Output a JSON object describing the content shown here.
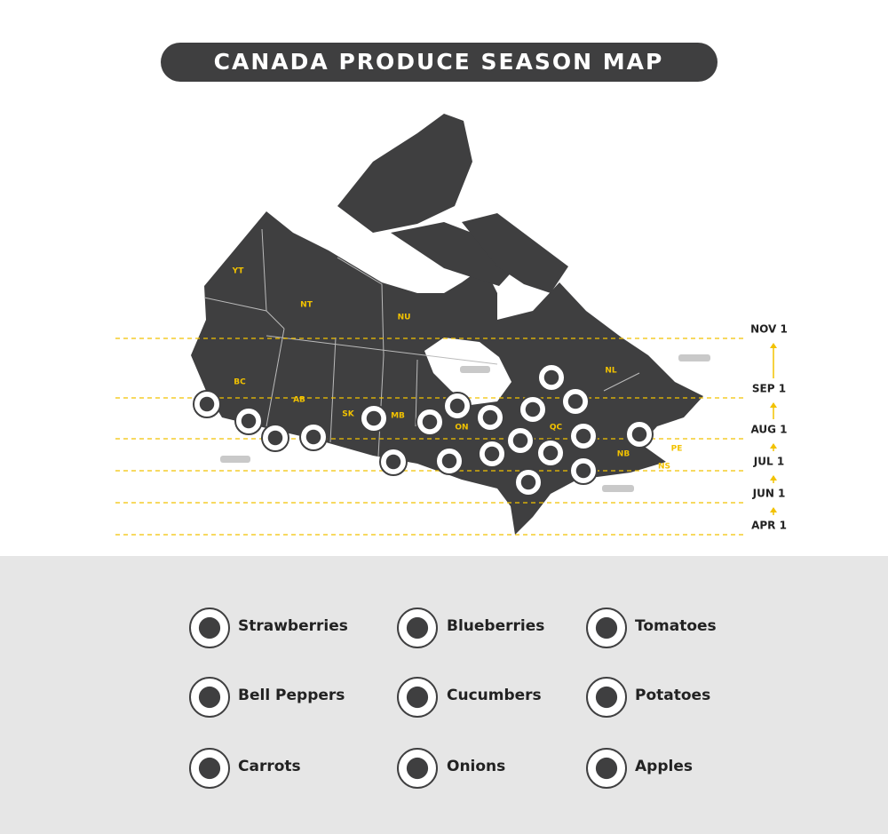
{
  "title": "CANADA PRODUCE SEASON MAP",
  "provinces": [
    "YT",
    "NT",
    "NU",
    "BC",
    "AB",
    "SK",
    "MB",
    "ON",
    "QC",
    "NL",
    "NB",
    "PE",
    "NS"
  ],
  "season_lines": [
    "NOV 1",
    "SEP 1",
    "AUG 1",
    "JUL 1",
    "JUN 1",
    "APR 1"
  ],
  "legend": [
    "Strawberries",
    "Blueberries",
    "Tomatoes",
    "Bell Peppers",
    "Cucumbers",
    "Potatoes",
    "Carrots",
    "Onions",
    "Apples"
  ]
}
